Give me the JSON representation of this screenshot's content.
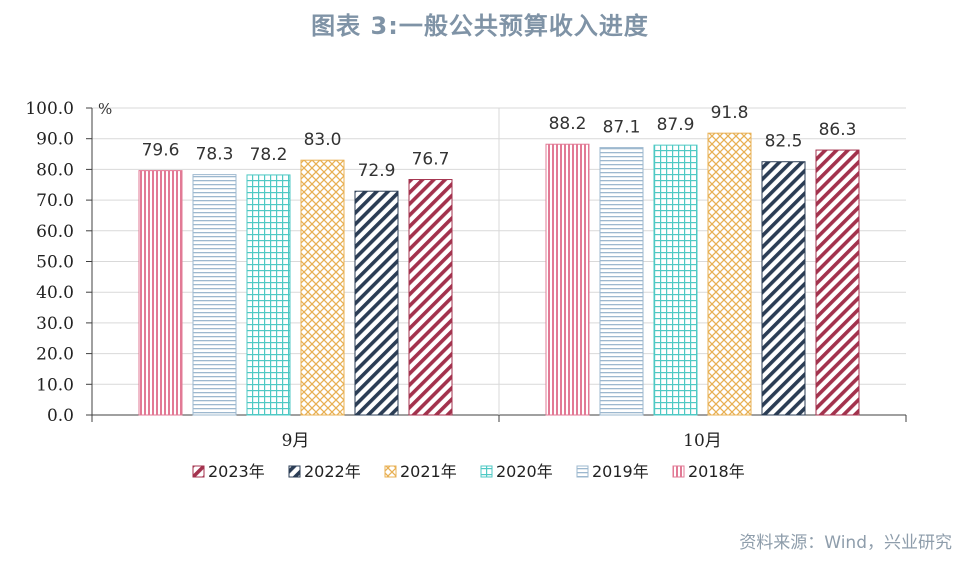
{
  "title": "图表 3:一般公共预算收入进度",
  "source": "资料来源：Wind，兴业研究",
  "chart_data": {
    "type": "bar",
    "categories": [
      "9月",
      "10月"
    ],
    "unit_label": "%",
    "ylim": [
      0,
      100
    ],
    "yticks": [
      "0.0",
      "10.0",
      "20.0",
      "30.0",
      "40.0",
      "50.0",
      "60.0",
      "70.0",
      "80.0",
      "90.0",
      "100.0"
    ],
    "grid": true,
    "legend_position": "bottom",
    "series": [
      {
        "name": "2018年",
        "values": [
          79.6,
          88.2
        ],
        "labels": [
          "79.6",
          "88.2"
        ],
        "color": "#e27a95",
        "pattern": "vertical"
      },
      {
        "name": "2019年",
        "values": [
          78.3,
          87.1
        ],
        "labels": [
          "78.3",
          "87.1"
        ],
        "color": "#9db8cf",
        "pattern": "horizontal"
      },
      {
        "name": "2020年",
        "values": [
          78.2,
          87.9
        ],
        "labels": [
          "78.2",
          "87.9"
        ],
        "color": "#4fc9c4",
        "pattern": "grid"
      },
      {
        "name": "2021年",
        "values": [
          83.0,
          91.8
        ],
        "labels": [
          "83.0",
          "91.8"
        ],
        "color": "#e8b053",
        "pattern": "cross"
      },
      {
        "name": "2022年",
        "values": [
          72.9,
          82.5
        ],
        "labels": [
          "72.9",
          "82.5"
        ],
        "color": "#2b3d55",
        "pattern": "diag"
      },
      {
        "name": "2023年",
        "values": [
          76.7,
          86.3
        ],
        "labels": [
          "76.7",
          "86.3"
        ],
        "color": "#a3324d",
        "pattern": "diag"
      }
    ],
    "legend_order": [
      "2023年",
      "2022年",
      "2021年",
      "2020年",
      "2019年",
      "2018年"
    ]
  }
}
